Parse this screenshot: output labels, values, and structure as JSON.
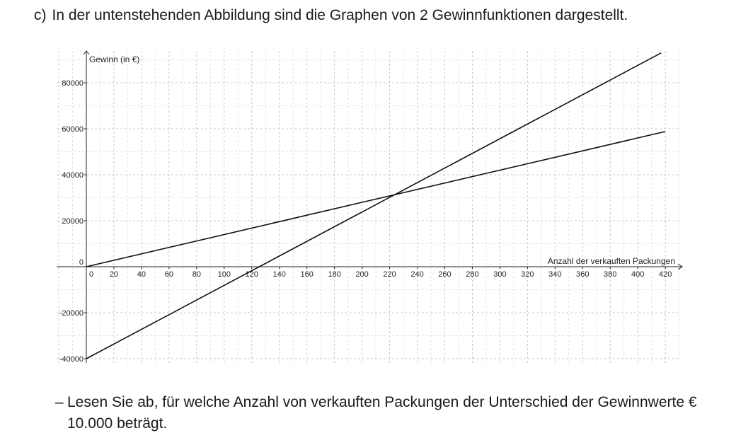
{
  "heading": {
    "part_label": "c)",
    "text": "In der untenstehenden Abbildung sind die Graphen von 2 Gewinnfunktionen dargestellt."
  },
  "chart_data": {
    "type": "line",
    "xlabel": "Anzahl der verkauften Packungen",
    "ylabel": "Gewinn (in €)",
    "xlim": [
      -22,
      428
    ],
    "ylim": [
      -42000,
      93000
    ],
    "x_ticks": [
      0,
      20,
      40,
      60,
      80,
      100,
      120,
      140,
      160,
      180,
      200,
      220,
      240,
      260,
      280,
      300,
      320,
      340,
      360,
      380,
      400,
      420
    ],
    "y_ticks": [
      -40000,
      -20000,
      0,
      20000,
      40000,
      60000,
      80000
    ],
    "y_tick_labels": [
      "-40000",
      "-20000",
      "0",
      "20000",
      "40000",
      "60000",
      "80000"
    ],
    "grid": true,
    "series": [
      {
        "x": [
          0,
          420
        ],
        "y": [
          0,
          58800
        ]
      },
      {
        "x": [
          0,
          417
        ],
        "y": [
          -40000,
          93000
        ]
      }
    ]
  },
  "task": {
    "dash": "–",
    "text": "Lesen Sie ab, für welche Anzahl von verkauften Packungen der Unterschied der Gewinnwerte € 10.000 beträgt."
  }
}
